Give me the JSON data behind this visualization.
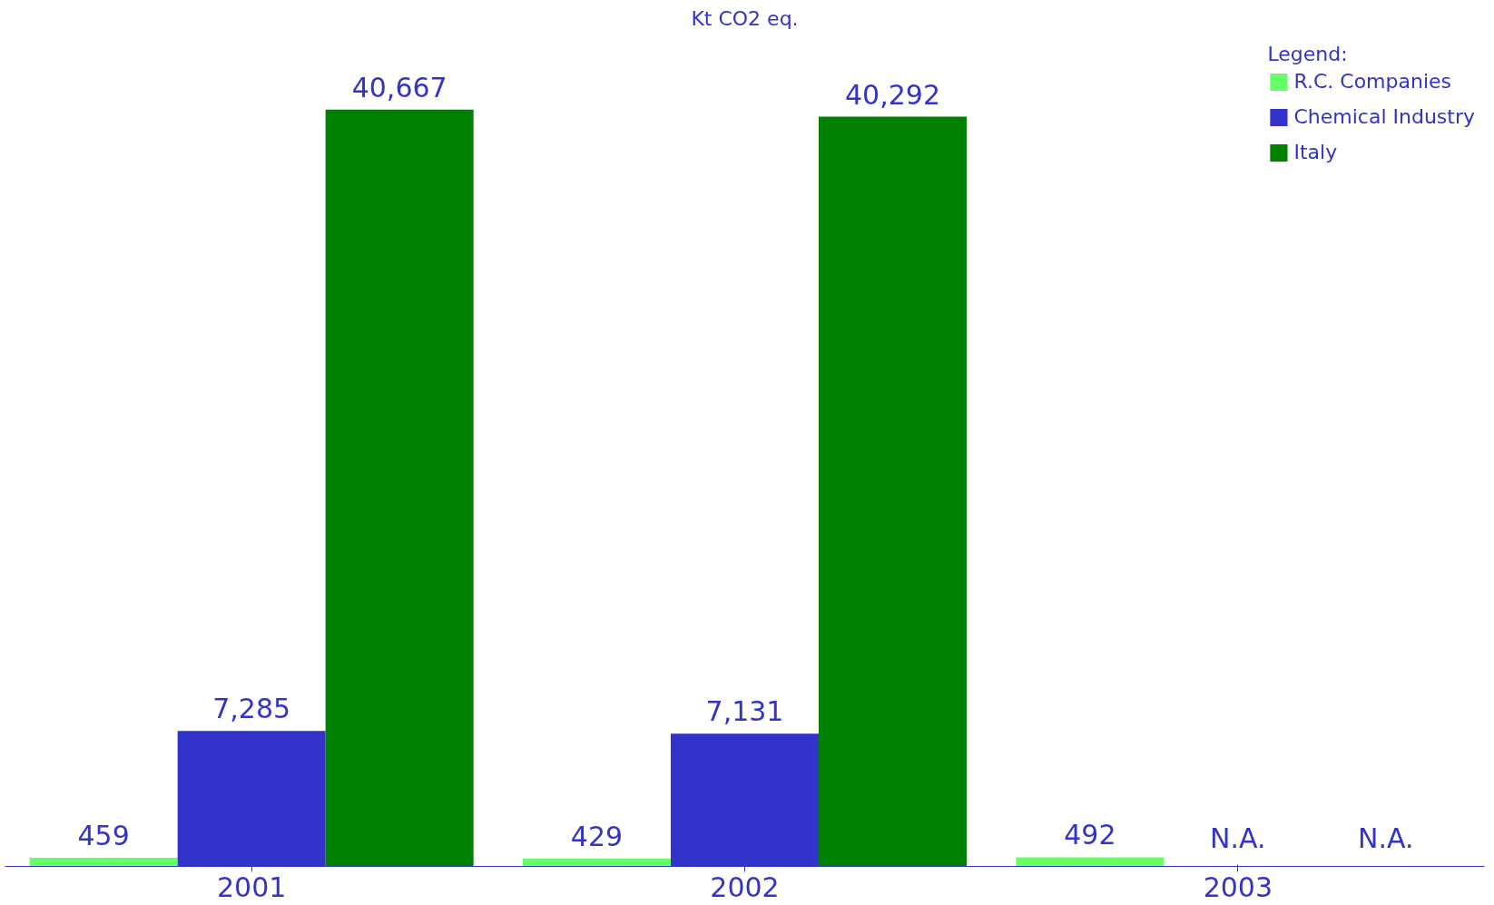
{
  "chart_data": {
    "type": "bar",
    "title": "Kt CO2 eq.",
    "legend_title": "Legend:",
    "categories": [
      "2001",
      "2002",
      "2003"
    ],
    "series": [
      {
        "name": "R.C. Companies",
        "color": "#66ff66",
        "values": [
          459,
          429,
          492
        ],
        "value_labels": [
          "459",
          "429",
          "492"
        ]
      },
      {
        "name": "Chemical Industry",
        "color": "#3333cc",
        "values": [
          7285,
          7131,
          null
        ],
        "value_labels": [
          "7,285",
          "7,131",
          "N.A."
        ]
      },
      {
        "name": "Italy",
        "color": "#008000",
        "values": [
          40667,
          40292,
          null
        ],
        "value_labels": [
          "40,667",
          "40,292",
          "N.A."
        ]
      }
    ],
    "legend": "top right",
    "grid": false,
    "tick_labels": "x"
  }
}
